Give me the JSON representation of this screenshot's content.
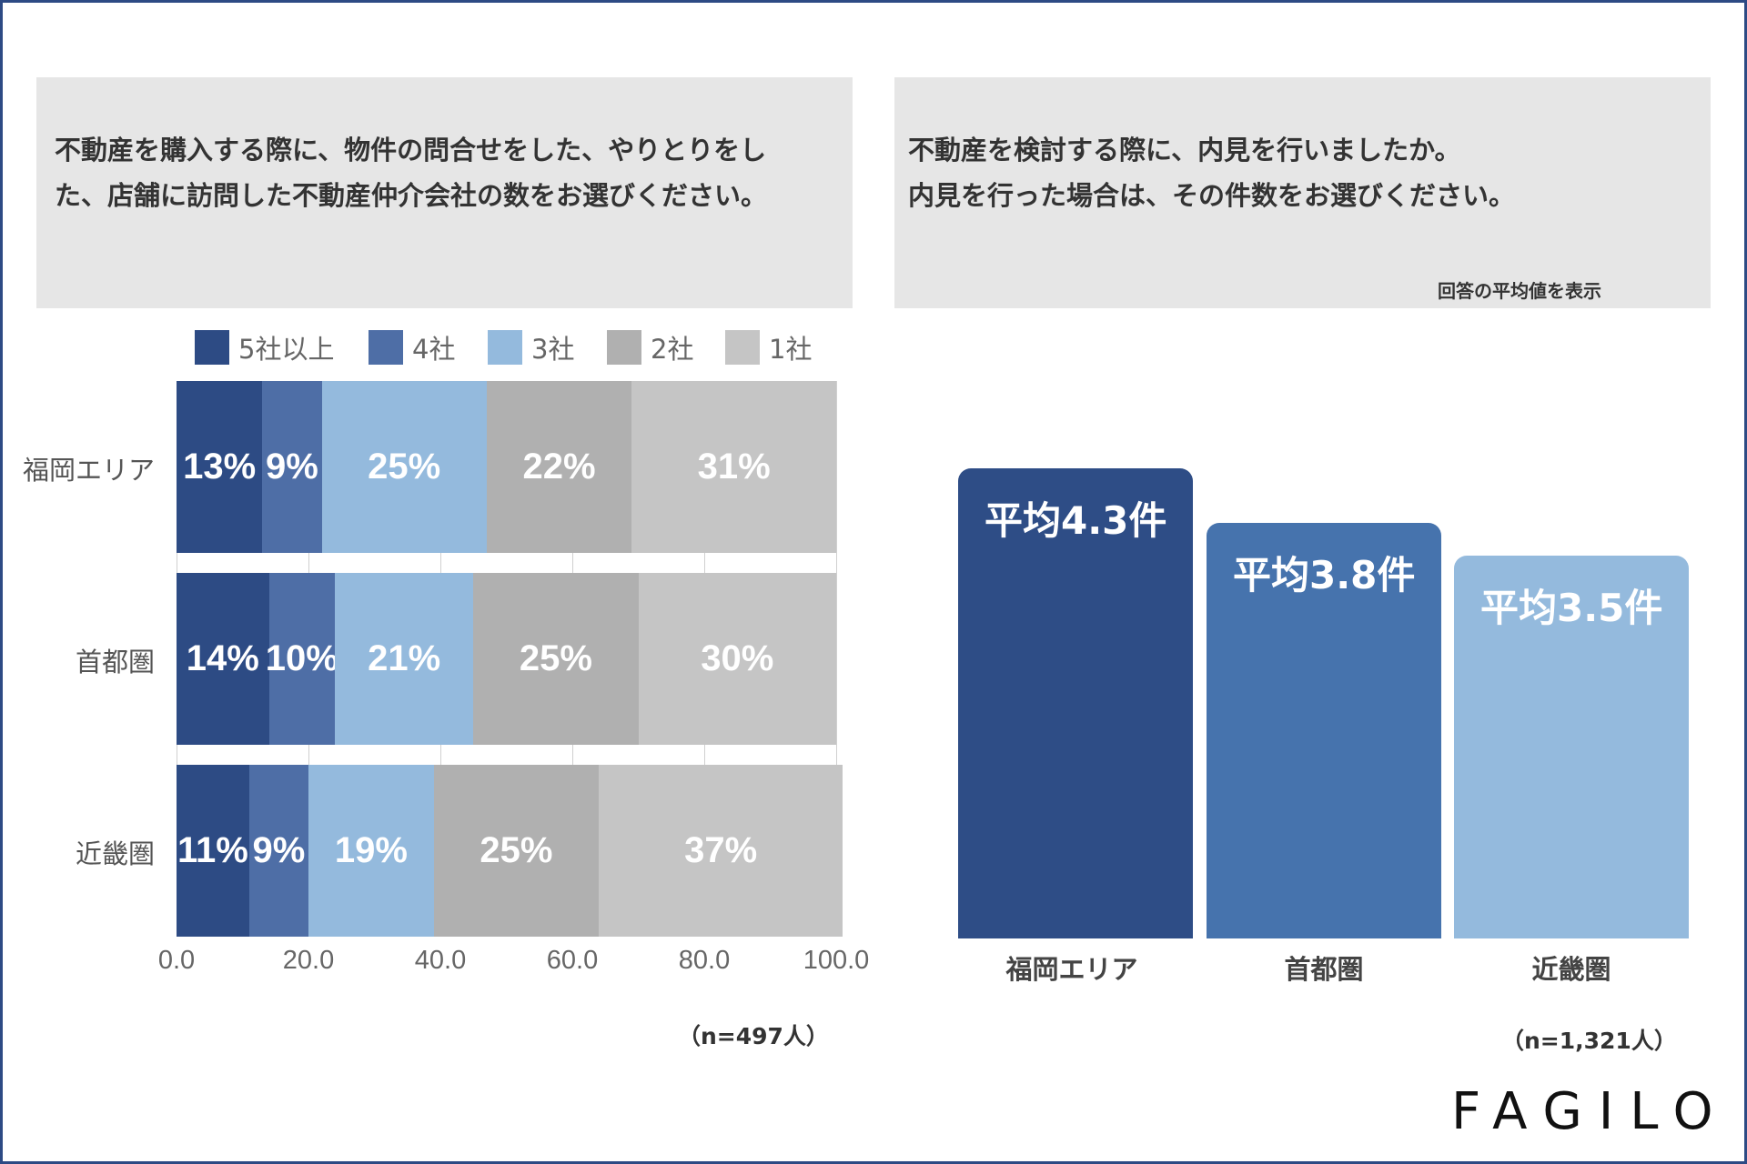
{
  "left_panel": {
    "question_line1": "不動産を購入する際に、物件の問合せをした、やりとりをし",
    "question_line2": "た、店舗に訪問した不動産仲介会社の数をお選びください。",
    "n_label": "（n=497人）"
  },
  "right_panel": {
    "question_line1": "不動産を検討する際に、内見を行いましたか。",
    "question_line2": "内見を行った場合は、その件数をお選びください。",
    "note": "回答の平均値を表示",
    "n_label": "（n=1,321人）"
  },
  "logo": "FAGILO",
  "chart_data": [
    {
      "type": "bar",
      "orientation": "horizontal",
      "stacked": true,
      "categories": [
        "福岡エリア",
        "首都圏",
        "近畿圏"
      ],
      "series": [
        {
          "name": "5社以上",
          "values": [
            13,
            14,
            11
          ],
          "labels": [
            "13%",
            "14%",
            "11%"
          ]
        },
        {
          "name": "4社",
          "values": [
            9,
            10,
            9
          ],
          "labels": [
            "9%",
            "10%",
            "9%"
          ]
        },
        {
          "name": "3社",
          "values": [
            25,
            21,
            19
          ],
          "labels": [
            "25%",
            "21%",
            "19%"
          ]
        },
        {
          "name": "2社",
          "values": [
            22,
            25,
            25
          ],
          "labels": [
            "22%",
            "25%",
            "25%"
          ]
        },
        {
          "name": "1社",
          "values": [
            31,
            30,
            37
          ],
          "labels": [
            "31%",
            "30%",
            "37%"
          ]
        }
      ],
      "colors": [
        "#2d4b84",
        "#4e6ea6",
        "#94badd",
        "#b0b0b0",
        "#c5c5c5"
      ],
      "xlim": [
        0,
        100
      ],
      "xticks": [
        "0.0",
        "20.0",
        "40.0",
        "60.0",
        "80.0",
        "100.0"
      ],
      "legend_position": "top"
    },
    {
      "type": "bar",
      "orientation": "vertical",
      "categories": [
        "福岡エリア",
        "首都圏",
        "近畿圏"
      ],
      "values": [
        4.3,
        3.8,
        3.5
      ],
      "labels": [
        "平均4.3件",
        "平均3.8件",
        "平均3.5件"
      ],
      "colors": [
        "#2e4d86",
        "#4673ad",
        "#94badd"
      ]
    }
  ]
}
